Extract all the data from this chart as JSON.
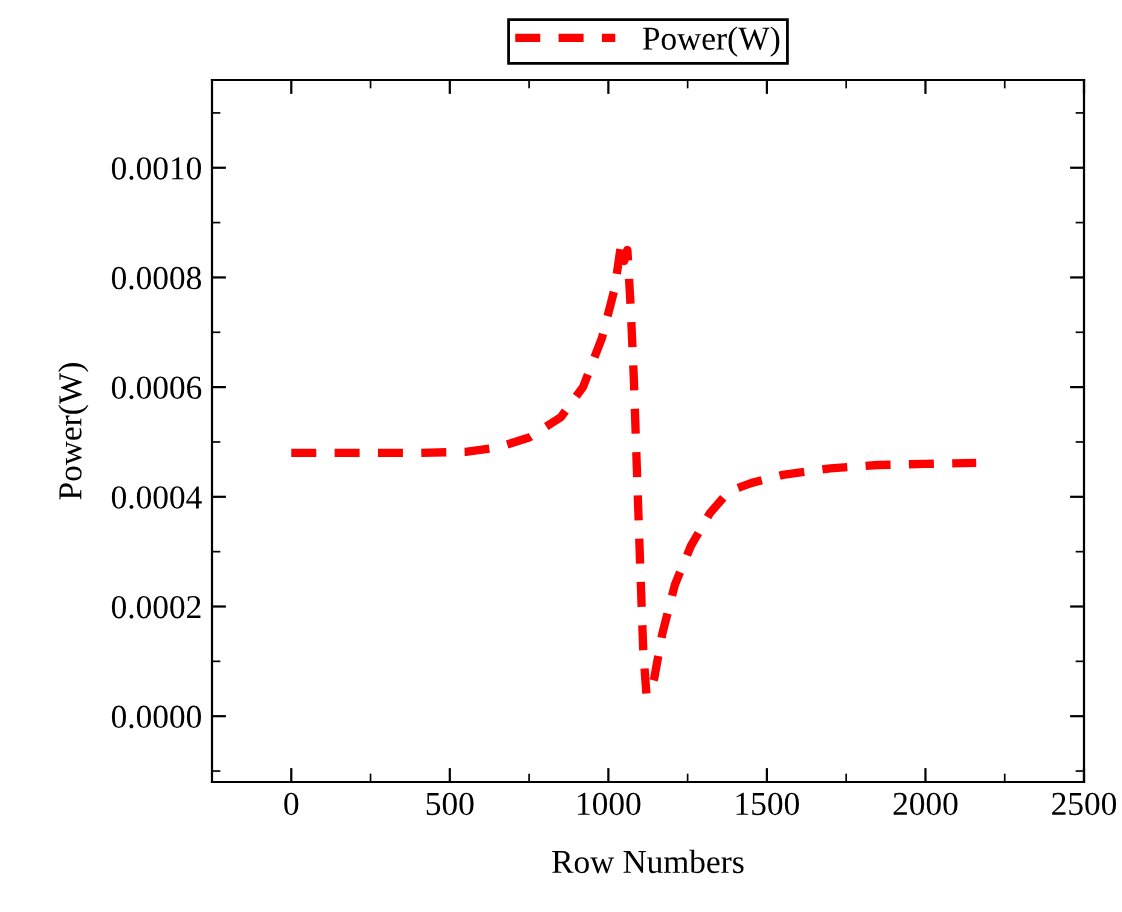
{
  "chart_data": {
    "type": "line",
    "xlabel": "Row Numbers",
    "ylabel": "Power(W)",
    "x": [
      0,
      200,
      400,
      550,
      650,
      750,
      850,
      920,
      980,
      1020,
      1040,
      1050,
      1060,
      1070,
      1080,
      1090,
      1100,
      1110,
      1120,
      1130,
      1145,
      1170,
      1210,
      1260,
      1320,
      1380,
      1450,
      1550,
      1700,
      1850,
      2000,
      2160
    ],
    "series": [
      {
        "name": "Power(W)",
        "color": "#ff0000",
        "values": [
          0.00048,
          0.00048,
          0.00048,
          0.000482,
          0.00049,
          0.000508,
          0.000545,
          0.0006,
          0.00069,
          0.00078,
          0.00086,
          0.00083,
          0.00085,
          0.00075,
          0.00062,
          0.00045,
          0.00028,
          0.00012,
          4e-05,
          4e-05,
          7e-05,
          0.00015,
          0.00024,
          0.00031,
          0.00037,
          0.00041,
          0.000425,
          0.00044,
          0.000452,
          0.000458,
          0.00046,
          0.000462
        ]
      }
    ],
    "xlim": [
      -250,
      2500
    ],
    "xticks": [
      0,
      500,
      1000,
      1500,
      2000,
      2500
    ],
    "ylim": [
      -0.00012,
      0.00116
    ],
    "yticks": [
      {
        "value": 0,
        "label": "0.0000"
      },
      {
        "value": 0.0002,
        "label": "0.0002"
      },
      {
        "value": 0.0004,
        "label": "0.0004"
      },
      {
        "value": 0.0006,
        "label": "0.0006"
      },
      {
        "value": 0.0008,
        "label": "0.0008"
      },
      {
        "value": 0.001,
        "label": "0.0010"
      }
    ],
    "legend": "top",
    "line_style": "dashed",
    "marker": "none",
    "grid": false
  }
}
